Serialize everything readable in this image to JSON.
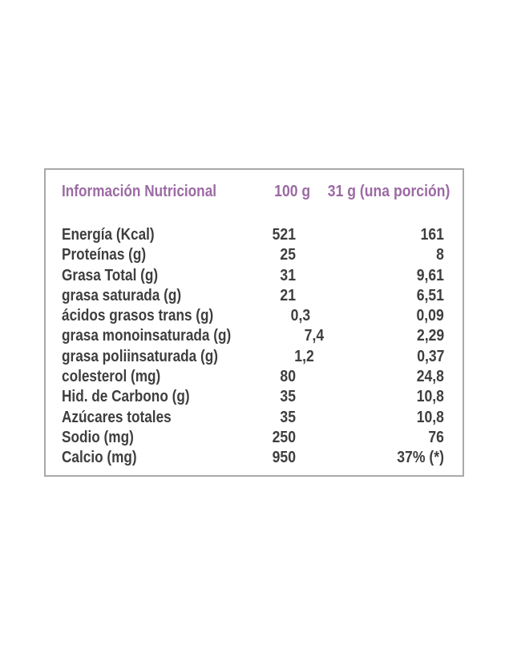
{
  "colors": {
    "accent": "#9b6aa3",
    "text": "#3e3e3e",
    "border": "#a9a9a9",
    "background": "#ffffff"
  },
  "nutrition_label": {
    "header": {
      "title": "Información Nutricional",
      "per_100g": "100 g",
      "per_portion": "31 g (una porción)"
    },
    "rows": [
      {
        "label": "Energía (Kcal)",
        "per_100g": "521",
        "per_portion": "161"
      },
      {
        "label": "Proteínas (g)",
        "per_100g": "25",
        "per_portion": "8"
      },
      {
        "label": "Grasa Total (g)",
        "per_100g": "31",
        "per_portion": "9,61"
      },
      {
        "label": "grasa saturada (g)",
        "per_100g": "21",
        "per_portion": "6,51"
      },
      {
        "label": "ácidos grasos trans (g)",
        "per_100g": "0,3",
        "per_portion": "0,09"
      },
      {
        "label": "grasa monoinsaturada (g)",
        "per_100g": "7,4",
        "per_portion": "2,29"
      },
      {
        "label": "grasa poliinsaturada (g)",
        "per_100g": "1,2",
        "per_portion": "0,37"
      },
      {
        "label": "colesterol (mg)",
        "per_100g": "80",
        "per_portion": "24,8"
      },
      {
        "label": "Hid. de Carbono (g)",
        "per_100g": "35",
        "per_portion": "10,8"
      },
      {
        "label": "Azúcares totales",
        "per_100g": "35",
        "per_portion": "10,8"
      },
      {
        "label": "Sodio (mg)",
        "per_100g": "250",
        "per_portion": "76"
      },
      {
        "label": "Calcio (mg)",
        "per_100g": "950",
        "per_portion": "37% (*)"
      }
    ]
  }
}
